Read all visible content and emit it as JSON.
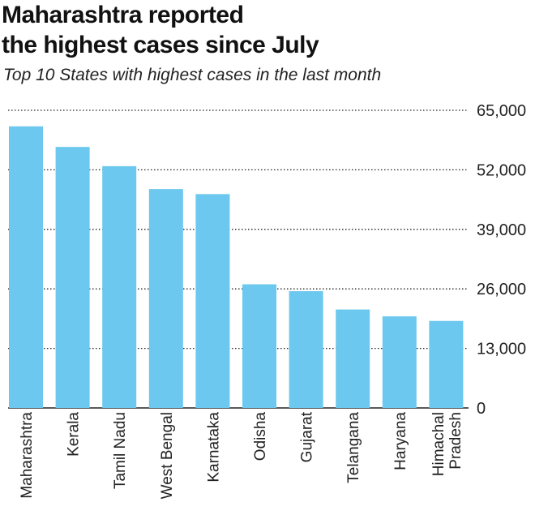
{
  "title_line1": "Maharashtra reported",
  "title_line2": "the highest cases since July",
  "subtitle": "Top 10 States with highest cases in the last month",
  "colors": {
    "bar": "#6cc8ee",
    "grid": "#222222",
    "text": "#222222"
  },
  "chart_data": {
    "type": "bar",
    "title": "Maharashtra reported the highest cases since July",
    "subtitle": "Top 10 States with highest cases in the last month",
    "categories": [
      "Maharashtra",
      "Kerala",
      "Tamil Nadu",
      "West Bengal",
      "Karnataka",
      "Odisha",
      "Gujarat",
      "Telangana",
      "Haryana",
      "Himachal Pradesh"
    ],
    "category_lines": [
      [
        "Maharashtra"
      ],
      [
        "Kerala"
      ],
      [
        "Tamil Nadu"
      ],
      [
        "West Bengal"
      ],
      [
        "Karnataka"
      ],
      [
        "Odisha"
      ],
      [
        "Gujarat"
      ],
      [
        "Telangana"
      ],
      [
        "Haryana"
      ],
      [
        "Himachal",
        "Pradesh"
      ]
    ],
    "values": [
      61500,
      57000,
      52800,
      47800,
      46700,
      27000,
      25500,
      21500,
      20000,
      19000
    ],
    "ylim": [
      0,
      65000
    ],
    "yticks": [
      0,
      13000,
      26000,
      39000,
      52000,
      65000
    ],
    "ytick_labels": [
      "0",
      "13,000",
      "26,000",
      "39,000",
      "52,000",
      "65,000"
    ],
    "grid": true,
    "y_axis_side": "right",
    "label_orientation": "vertical"
  }
}
